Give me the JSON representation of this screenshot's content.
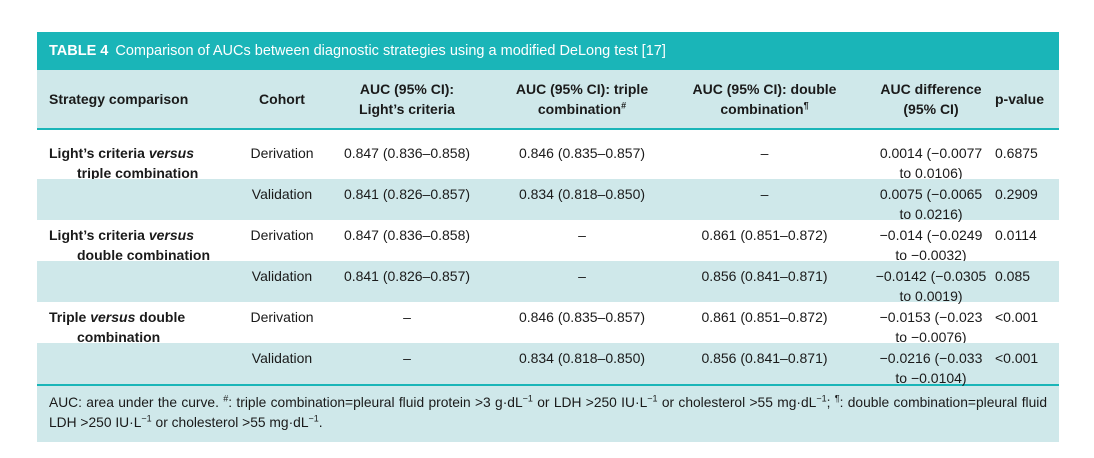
{
  "table": {
    "label": "TABLE 4",
    "title": "Comparison of AUCs between diagnostic strategies using a modified DeLong test [17]",
    "headers": {
      "strategy": "Strategy comparison",
      "cohort": "Cohort",
      "auc_light_1": "AUC (95% CI):",
      "auc_light_2": "Light’s criteria",
      "auc_triple_1": "AUC (95% CI): triple",
      "auc_triple_2": "combination",
      "auc_triple_mark": "#",
      "auc_double_1": "AUC (95% CI): double",
      "auc_double_2": "combination",
      "auc_double_mark": "¶",
      "diff_1": "AUC difference",
      "diff_2": "(95% CI)",
      "pvalue": "p-value"
    },
    "groups": [
      {
        "strategy_line1_pre": "Light’s criteria ",
        "strategy_line1_it": "versus",
        "strategy_line2": "triple combination",
        "rows": [
          {
            "cohort": "Derivation",
            "light": "0.847 (0.836–0.858)",
            "triple": "0.846 (0.835–0.857)",
            "double": "–",
            "diff1": "0.0014 (−0.0077",
            "diff2": "to 0.0106)",
            "p": "0.6875"
          },
          {
            "cohort": "Validation",
            "light": "0.841 (0.826–0.857)",
            "triple": "0.834 (0.818–0.850)",
            "double": "–",
            "diff1": "0.0075 (−0.0065",
            "diff2": "to 0.0216)",
            "p": "0.2909"
          }
        ]
      },
      {
        "strategy_line1_pre": "Light’s criteria ",
        "strategy_line1_it": "versus",
        "strategy_line2": "double combination",
        "rows": [
          {
            "cohort": "Derivation",
            "light": "0.847 (0.836–0.858)",
            "triple": "–",
            "double": "0.861 (0.851–0.872)",
            "diff1": "−0.014 (−0.0249",
            "diff2": "to −0.0032)",
            "p": "0.0114"
          },
          {
            "cohort": "Validation",
            "light": "0.841 (0.826–0.857)",
            "triple": "–",
            "double": "0.856 (0.841–0.871)",
            "diff1": "−0.0142 (−0.0305",
            "diff2": "to 0.0019)",
            "p": "0.085"
          }
        ]
      },
      {
        "strategy_line1_pre": "Triple ",
        "strategy_line1_it": "versus",
        "strategy_line1_post": " double",
        "strategy_line2": "combination",
        "rows": [
          {
            "cohort": "Derivation",
            "light": "–",
            "triple": "0.846 (0.835–0.857)",
            "double": "0.861 (0.851–0.872)",
            "diff1": "−0.0153 (−0.023",
            "diff2": "to −0.0076)",
            "p": "<0.001"
          },
          {
            "cohort": "Validation",
            "light": "–",
            "triple": "0.834 (0.818–0.850)",
            "double": "0.856 (0.841–0.871)",
            "diff1": "−0.0216 (−0.033",
            "diff2": "to −0.0104)",
            "p": "<0.001"
          }
        ]
      }
    ],
    "footnote": {
      "p1": "AUC: area under the curve. ",
      "m1": "#",
      "p2": ": triple combination=pleural fluid protein >3 g·dL",
      "e1": "−1",
      "p3": " or LDH >250 IU·L",
      "e2": "−1",
      "p4": " or cholesterol >55 mg·dL",
      "e3": "−1",
      "p5": "; ",
      "m2": "¶",
      "p6": ": double combination=pleural fluid LDH >250 IU·L",
      "e4": "−1",
      "p7": " or cholesterol >55 mg·dL",
      "e5": "−1",
      "p8": "."
    }
  },
  "colors": {
    "accent": "#1ab5b8",
    "shade": "#cfe8ea"
  }
}
